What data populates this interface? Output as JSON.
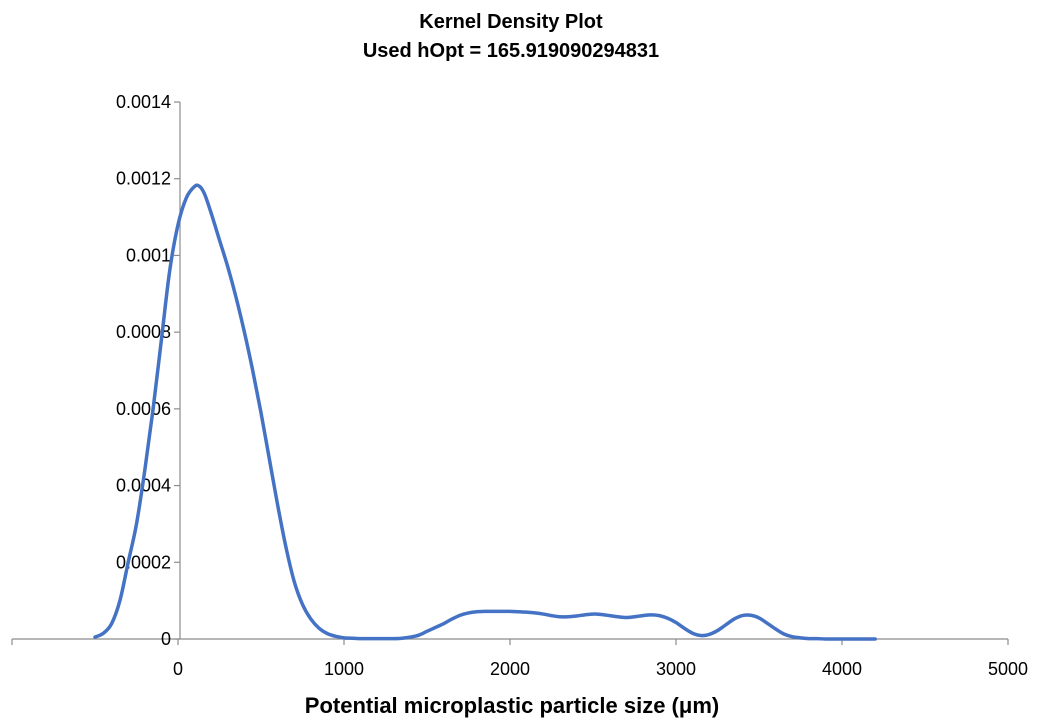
{
  "chart_data": {
    "type": "line",
    "title": "Kernel Density Plot",
    "subtitle": "Used hOpt = 165.919090294831",
    "xlabel": "Potential microplastic particle size (μm)",
    "ylabel": "",
    "xlim": [
      -1000,
      5000
    ],
    "ylim": [
      0,
      0.0014
    ],
    "x_ticks": [
      0,
      1000,
      2000,
      3000,
      4000,
      5000
    ],
    "x_tick_labels": [
      "0",
      "1000",
      "2000",
      "3000",
      "4000",
      "5000"
    ],
    "y_ticks": [
      0,
      0.0002,
      0.0004,
      0.0006,
      0.0008,
      0.001,
      0.0012,
      0.0014
    ],
    "y_tick_labels": [
      "0",
      "0.0002",
      "0.0004",
      "0.0006",
      "0.0008",
      "0.001",
      "0.0012",
      "0.0014"
    ],
    "grid": false,
    "legend": "none",
    "series": [
      {
        "color": "#4472C4",
        "x": [
          -500,
          -450,
          -400,
          -350,
          -300,
          -250,
          -200,
          -150,
          -100,
          -50,
          0,
          50,
          100,
          130,
          160,
          200,
          250,
          300,
          350,
          400,
          450,
          500,
          550,
          600,
          650,
          700,
          750,
          800,
          850,
          900,
          950,
          1000,
          1050,
          1100,
          1150,
          1200,
          1250,
          1300,
          1350,
          1400,
          1450,
          1500,
          1550,
          1600,
          1650,
          1700,
          1750,
          1800,
          1850,
          1900,
          1950,
          2000,
          2050,
          2100,
          2150,
          2200,
          2250,
          2300,
          2350,
          2400,
          2450,
          2500,
          2550,
          2600,
          2650,
          2700,
          2750,
          2800,
          2850,
          2900,
          2950,
          3000,
          3050,
          3100,
          3150,
          3200,
          3250,
          3300,
          3350,
          3400,
          3450,
          3500,
          3550,
          3600,
          3650,
          3700,
          3750,
          3800,
          3850,
          3900,
          3950,
          4000,
          4050,
          4100,
          4150,
          4200
        ],
        "y": [
          5e-06,
          1.5e-05,
          4e-05,
          0.0001,
          0.0002,
          0.0003,
          0.00044,
          0.0006,
          0.00078,
          0.00096,
          0.00108,
          0.00115,
          0.00118,
          0.00118,
          0.00116,
          0.00111,
          0.00104,
          0.00097,
          0.00089,
          0.0008,
          0.0007,
          0.00059,
          0.00047,
          0.00035,
          0.00024,
          0.00015,
          9e-05,
          5.2e-05,
          2.8e-05,
          1.4e-05,
          7e-06,
          3e-06,
          2e-06,
          1e-06,
          1e-06,
          1e-06,
          1e-06,
          1e-06,
          2e-06,
          5e-06,
          1e-05,
          2e-05,
          3e-05,
          4e-05,
          5.2e-05,
          6.2e-05,
          6.8e-05,
          7.1e-05,
          7.2e-05,
          7.2e-05,
          7.2e-05,
          7.2e-05,
          7.1e-05,
          7e-05,
          6.8e-05,
          6.5e-05,
          6.1e-05,
          5.8e-05,
          5.8e-05,
          6e-05,
          6.3e-05,
          6.5e-05,
          6.4e-05,
          6.1e-05,
          5.8e-05,
          5.6e-05,
          5.8e-05,
          6.1e-05,
          6.3e-05,
          6.1e-05,
          5.4e-05,
          4.3e-05,
          2.8e-05,
          1.5e-05,
          9e-06,
          1.2e-05,
          2.2e-05,
          3.7e-05,
          5.2e-05,
          6.1e-05,
          6.2e-05,
          5.5e-05,
          4.1e-05,
          2.6e-05,
          1.3e-05,
          6e-06,
          3e-06,
          1e-06,
          1e-06,
          0.0,
          0.0,
          0.0,
          0.0,
          0.0,
          0.0,
          0.0
        ]
      }
    ]
  }
}
